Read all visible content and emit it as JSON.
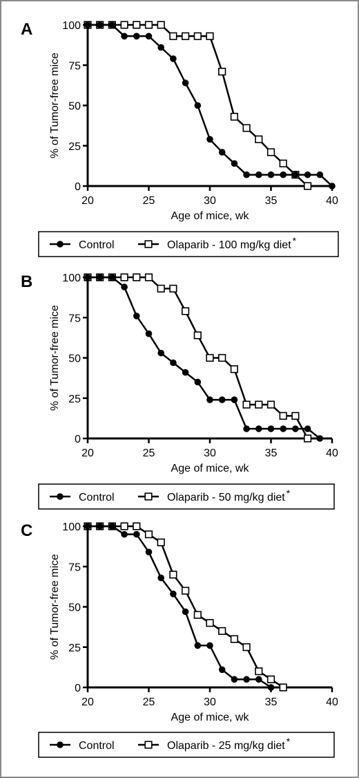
{
  "colors": {
    "line": "#000000",
    "frame": "#8a8a8a",
    "open_fill": "#ffffff"
  },
  "chart_data": [
    {
      "type": "line",
      "panel_label": "A",
      "xlabel": "Age of mice, wk",
      "ylabel": "% of Tumor-free mice",
      "xlim": [
        20,
        40
      ],
      "ylim": [
        0,
        100
      ],
      "xticks": [
        20,
        25,
        30,
        35,
        40
      ],
      "yticks": [
        0,
        25,
        50,
        75,
        100
      ],
      "grid": false,
      "legend_position": "below",
      "series": [
        {
          "name": "Control",
          "marker": "filled-circle",
          "x": [
            20,
            21,
            22,
            23,
            24,
            25,
            26,
            27,
            28,
            29,
            30,
            31,
            32,
            33,
            34,
            35,
            36,
            37,
            38,
            39,
            40
          ],
          "y": [
            100,
            100,
            100,
            93,
            93,
            93,
            86,
            79,
            64,
            50,
            29,
            21,
            14,
            7,
            7,
            7,
            7,
            7,
            7,
            7,
            0
          ]
        },
        {
          "name": "Olaparib - 100 mg/kg diet",
          "name_superscript": "*",
          "marker": "open-square",
          "x": [
            20,
            21,
            22,
            23,
            24,
            25,
            26,
            27,
            28,
            29,
            30,
            31,
            32,
            33,
            34,
            35,
            36,
            37,
            38
          ],
          "y": [
            100,
            100,
            100,
            100,
            100,
            100,
            100,
            93,
            93,
            93,
            93,
            71,
            43,
            36,
            29,
            21,
            14,
            7,
            0
          ]
        }
      ]
    },
    {
      "type": "line",
      "panel_label": "B",
      "xlabel": "Age of mice, wk",
      "ylabel": "% of Tumor-free mice",
      "xlim": [
        20,
        40
      ],
      "ylim": [
        0,
        100
      ],
      "xticks": [
        20,
        25,
        30,
        35,
        40
      ],
      "yticks": [
        0,
        25,
        50,
        75,
        100
      ],
      "grid": false,
      "legend_position": "below",
      "series": [
        {
          "name": "Control",
          "marker": "filled-circle",
          "x": [
            20,
            21,
            22,
            23,
            24,
            25,
            26,
            27,
            28,
            29,
            30,
            31,
            32,
            33,
            34,
            35,
            36,
            37,
            38,
            39
          ],
          "y": [
            100,
            100,
            100,
            94,
            76,
            65,
            53,
            47,
            41,
            35,
            24,
            24,
            24,
            6,
            6,
            6,
            6,
            6,
            6,
            0
          ]
        },
        {
          "name": "Olaparib - 50 mg/kg diet",
          "name_superscript": "*",
          "marker": "open-square",
          "x": [
            20,
            21,
            22,
            23,
            24,
            25,
            26,
            27,
            28,
            29,
            30,
            31,
            32,
            33,
            34,
            35,
            36,
            37,
            38
          ],
          "y": [
            100,
            100,
            100,
            100,
            100,
            100,
            93,
            93,
            79,
            64,
            50,
            50,
            43,
            21,
            21,
            21,
            14,
            14,
            0
          ]
        }
      ]
    },
    {
      "type": "line",
      "panel_label": "C",
      "xlabel": "Age of mice, wk",
      "ylabel": "% of Tumor-free mice",
      "xlim": [
        20,
        40
      ],
      "ylim": [
        0,
        100
      ],
      "xticks": [
        20,
        25,
        30,
        35,
        40
      ],
      "yticks": [
        0,
        25,
        50,
        75,
        100
      ],
      "grid": false,
      "legend_position": "below",
      "series": [
        {
          "name": "Control",
          "marker": "filled-circle",
          "x": [
            20,
            21,
            22,
            23,
            24,
            25,
            26,
            27,
            28,
            29,
            30,
            31,
            32,
            33,
            34,
            35
          ],
          "y": [
            100,
            100,
            100,
            95,
            95,
            84,
            68,
            58,
            47,
            26,
            26,
            11,
            5,
            5,
            5,
            0
          ]
        },
        {
          "name": "Olaparib - 25 mg/kg diet",
          "name_superscript": "*",
          "marker": "open-square",
          "x": [
            20,
            21,
            22,
            23,
            24,
            25,
            26,
            27,
            28,
            29,
            30,
            31,
            32,
            33,
            34,
            35,
            36
          ],
          "y": [
            100,
            100,
            100,
            100,
            100,
            95,
            90,
            70,
            60,
            45,
            40,
            35,
            30,
            25,
            10,
            5,
            0
          ]
        }
      ]
    }
  ]
}
